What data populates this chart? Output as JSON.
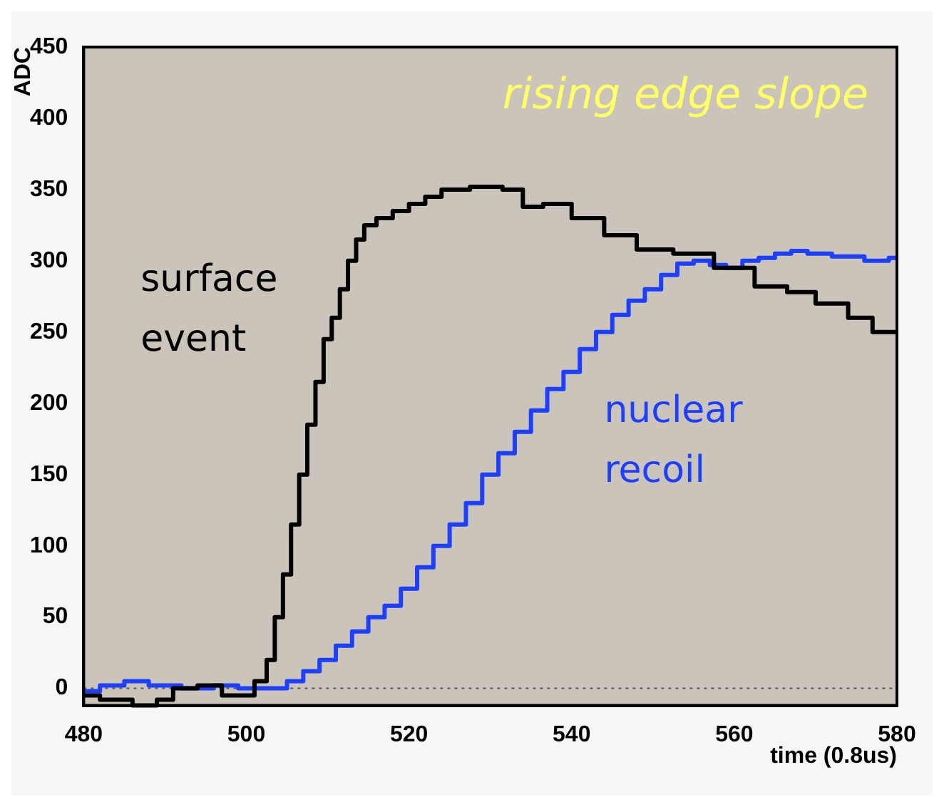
{
  "chart_data": {
    "type": "step",
    "title": "rising edge slope",
    "xlabel": "time (0.8us)",
    "ylabel": "ADC",
    "xlim": [
      480,
      580
    ],
    "ylim": [
      -12,
      450
    ],
    "xticks": [
      480,
      500,
      520,
      540,
      560,
      580
    ],
    "yticks": [
      0,
      50,
      100,
      150,
      200,
      250,
      300,
      350,
      400,
      450
    ],
    "grid": false,
    "legend": false,
    "ref_lines": [
      {
        "axis": "y",
        "value": 0,
        "color": "#555555",
        "line_style": "dotted"
      }
    ],
    "series": [
      {
        "name": "surface event",
        "color": "#000000",
        "x": [
          480,
          484,
          488,
          490,
          492,
          496,
          498,
          500,
          502,
          503,
          504,
          505,
          506,
          507,
          508,
          509,
          510,
          511,
          512,
          513,
          514,
          515,
          517,
          519,
          521,
          523,
          525,
          530,
          533,
          535,
          538,
          542,
          546,
          550,
          555,
          560,
          565,
          568,
          572,
          576,
          578,
          580
        ],
        "values": [
          -5,
          -8,
          -12,
          -8,
          0,
          2,
          -5,
          -5,
          5,
          20,
          50,
          80,
          115,
          150,
          185,
          215,
          245,
          260,
          280,
          300,
          315,
          325,
          330,
          335,
          340,
          345,
          350,
          352,
          350,
          338,
          340,
          330,
          318,
          308,
          305,
          295,
          282,
          278,
          270,
          260,
          250,
          250
        ]
      },
      {
        "name": "nuclear recoil",
        "color": "#1f3fff",
        "x": [
          480,
          484,
          486,
          490,
          494,
          498,
          500,
          504,
          506,
          508,
          510,
          512,
          514,
          516,
          518,
          520,
          522,
          524,
          526,
          528,
          530,
          532,
          534,
          536,
          538,
          540,
          542,
          544,
          546,
          548,
          550,
          552,
          554,
          556,
          558,
          560,
          562,
          564,
          566,
          568,
          570,
          574,
          578,
          580
        ],
        "values": [
          -2,
          2,
          5,
          2,
          0,
          2,
          0,
          0,
          5,
          12,
          20,
          30,
          40,
          50,
          58,
          70,
          85,
          100,
          115,
          130,
          150,
          165,
          180,
          195,
          210,
          222,
          238,
          250,
          262,
          272,
          280,
          290,
          298,
          300,
          297,
          295,
          300,
          302,
          305,
          307,
          305,
          303,
          300,
          302
        ]
      }
    ]
  }
}
